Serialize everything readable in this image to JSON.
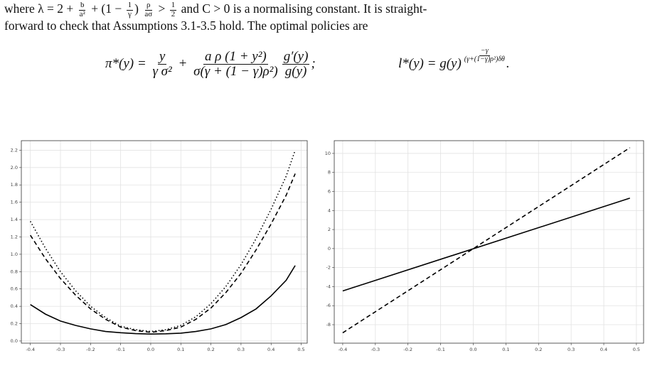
{
  "text": {
    "lines": [
      [
        "where ",
        "λ = 2 + ",
        {
          "num": "b",
          "den": "a²"
        },
        " + (1 − ",
        {
          "num": "1",
          "den": "γ"
        },
        ") ",
        {
          "num": "ρ",
          "den": "aσ"
        },
        " > ",
        {
          "num": "1",
          "den": "2"
        },
        " and C > 0 is a normalising constant. It is straight-"
      ],
      [
        "forward to check that Assumptions 3.1-3.5 hold. The optimal policies are"
      ]
    ],
    "equations": [
      [
        "π*(y) = ",
        {
          "num": "y",
          "den": "γ σ²"
        },
        " + ",
        {
          "num": "a ρ (1 + y²)",
          "den": "σ(γ + (1 − γ)ρ²)"
        },
        {
          "num": "g′(y)",
          "den": "g(y)"
        },
        ";"
      ],
      [
        "l*(y) = g(y)",
        {
          "exponent": {
            "num": "−γ",
            "den": "(γ+(1−γ)ρ²)δθ"
          }
        },
        "."
      ]
    ]
  },
  "chart_data": [
    {
      "type": "line",
      "x": [
        -0.4,
        -0.35,
        -0.3,
        -0.25,
        -0.2,
        -0.15,
        -0.1,
        -0.05,
        0,
        0.05,
        0.1,
        0.15,
        0.2,
        0.25,
        0.3,
        0.35,
        0.4,
        0.45,
        0.48
      ],
      "series": [
        {
          "color": "#000000",
          "dash": "solid",
          "values": [
            0.42,
            0.31,
            0.23,
            0.18,
            0.14,
            0.11,
            0.095,
            0.085,
            0.08,
            0.083,
            0.09,
            0.11,
            0.14,
            0.19,
            0.27,
            0.37,
            0.52,
            0.7,
            0.87
          ]
        },
        {
          "color": "#000000",
          "dash": "dashed",
          "values": [
            1.22,
            0.95,
            0.72,
            0.53,
            0.37,
            0.25,
            0.16,
            0.12,
            0.1,
            0.12,
            0.16,
            0.25,
            0.38,
            0.56,
            0.78,
            1.05,
            1.35,
            1.68,
            1.93
          ]
        },
        {
          "color": "#000000",
          "dash": "dotted",
          "values": [
            1.38,
            1.07,
            0.8,
            0.58,
            0.4,
            0.27,
            0.17,
            0.13,
            0.11,
            0.13,
            0.18,
            0.28,
            0.43,
            0.63,
            0.88,
            1.18,
            1.52,
            1.9,
            2.2
          ]
        }
      ],
      "xlim": [
        -0.43,
        0.52
      ],
      "xticks": [
        -0.4,
        -0.3,
        -0.2,
        -0.1,
        {
          "value": 0,
          "label": "0.0"
        },
        0.1,
        0.2,
        0.3,
        0.4,
        0.5
      ],
      "ylim": [
        -0.025,
        2.31
      ],
      "yticks": [
        {
          "value": 0,
          "label": "0.0"
        },
        0.2,
        0.4,
        0.6,
        0.8,
        {
          "value": 1,
          "label": "1.0"
        },
        1.2,
        1.4,
        1.6,
        1.8,
        {
          "value": 2,
          "label": "2.0"
        },
        2.2
      ],
      "grid": true
    },
    {
      "type": "line",
      "x": [
        -0.4,
        0.48
      ],
      "series": [
        {
          "color": "#000000",
          "dash": "solid",
          "values": [
            -4.45,
            5.3
          ]
        },
        {
          "color": "#000000",
          "dash": "dashed",
          "values": [
            -8.85,
            10.6
          ]
        }
      ],
      "xlim": [
        -0.426,
        0.522
      ],
      "xticks": [
        -0.4,
        -0.3,
        -0.2,
        -0.1,
        {
          "value": 0,
          "label": "0.0"
        },
        0.1,
        0.2,
        0.3,
        0.4,
        0.5
      ],
      "ylim": [
        -9.94,
        11.34
      ],
      "yticks": [
        -8,
        -6,
        -4,
        -2,
        0,
        2,
        4,
        6,
        8,
        10
      ],
      "grid": true
    }
  ]
}
